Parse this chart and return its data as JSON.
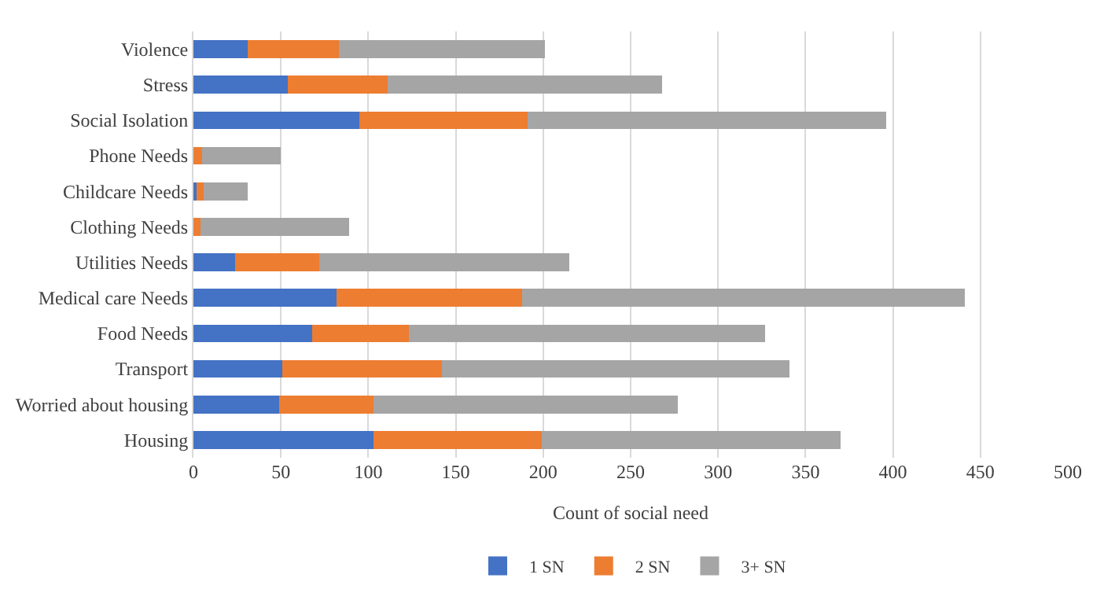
{
  "chart_data": {
    "type": "bar",
    "orientation": "horizontal",
    "stacked": true,
    "xlabel": "Count of social need",
    "categories": [
      "Violence",
      "Stress",
      "Social Isolation",
      "Phone Needs",
      "Childcare Needs",
      "Clothing Needs",
      "Utilities Needs",
      "Medical care Needs",
      "Food Needs",
      "Transport",
      "Worried about housing",
      "Housing"
    ],
    "series": [
      {
        "name": "1 SN",
        "color": "#4472c4",
        "values": [
          31,
          54,
          95,
          0,
          2,
          0,
          24,
          82,
          68,
          51,
          49,
          103
        ]
      },
      {
        "name": "2 SN",
        "color": "#ed7d31",
        "values": [
          52,
          57,
          96,
          5,
          4,
          4,
          48,
          106,
          55,
          91,
          54,
          96
        ]
      },
      {
        "name": "3+ SN",
        "color": "#a5a5a5",
        "values": [
          118,
          157,
          205,
          45,
          25,
          85,
          143,
          253,
          204,
          199,
          174,
          171
        ]
      }
    ],
    "xlim": [
      0,
      500
    ],
    "xticks": [
      0,
      50,
      100,
      150,
      200,
      250,
      300,
      350,
      400,
      450,
      500
    ],
    "grid": "x",
    "legend": "bottom"
  }
}
